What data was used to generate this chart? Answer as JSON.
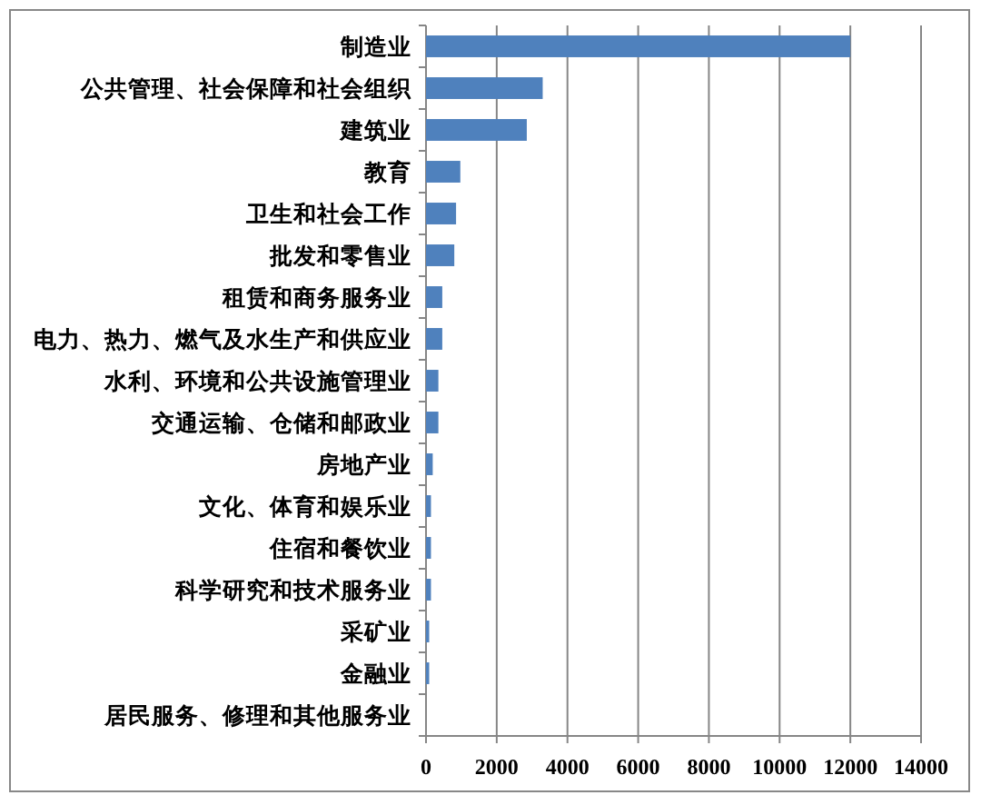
{
  "chart_data": {
    "type": "bar",
    "orientation": "horizontal",
    "categories": [
      "制造业",
      "公共管理、社会保障和社会组织",
      "建筑业",
      "教育",
      "卫生和社会工作",
      "批发和零售业",
      "租赁和商务服务业",
      "电力、热力、燃气及水生产和供应业",
      "水利、环境和公共设施管理业",
      "交通运输、仓储和邮政业",
      "房地产业",
      "文化、体育和娱乐业",
      "住宿和餐饮业",
      "科学研究和技术服务业",
      "采矿业",
      "金融业",
      "居民服务、修理和其他服务业"
    ],
    "values": [
      12000,
      3300,
      2850,
      970,
      850,
      800,
      460,
      460,
      350,
      350,
      190,
      140,
      140,
      140,
      90,
      90,
      0
    ],
    "color": "#4f81bd",
    "xlim": [
      0,
      14000
    ],
    "xticks": [
      0,
      2000,
      4000,
      6000,
      8000,
      10000,
      12000,
      14000
    ],
    "grid": "x"
  }
}
